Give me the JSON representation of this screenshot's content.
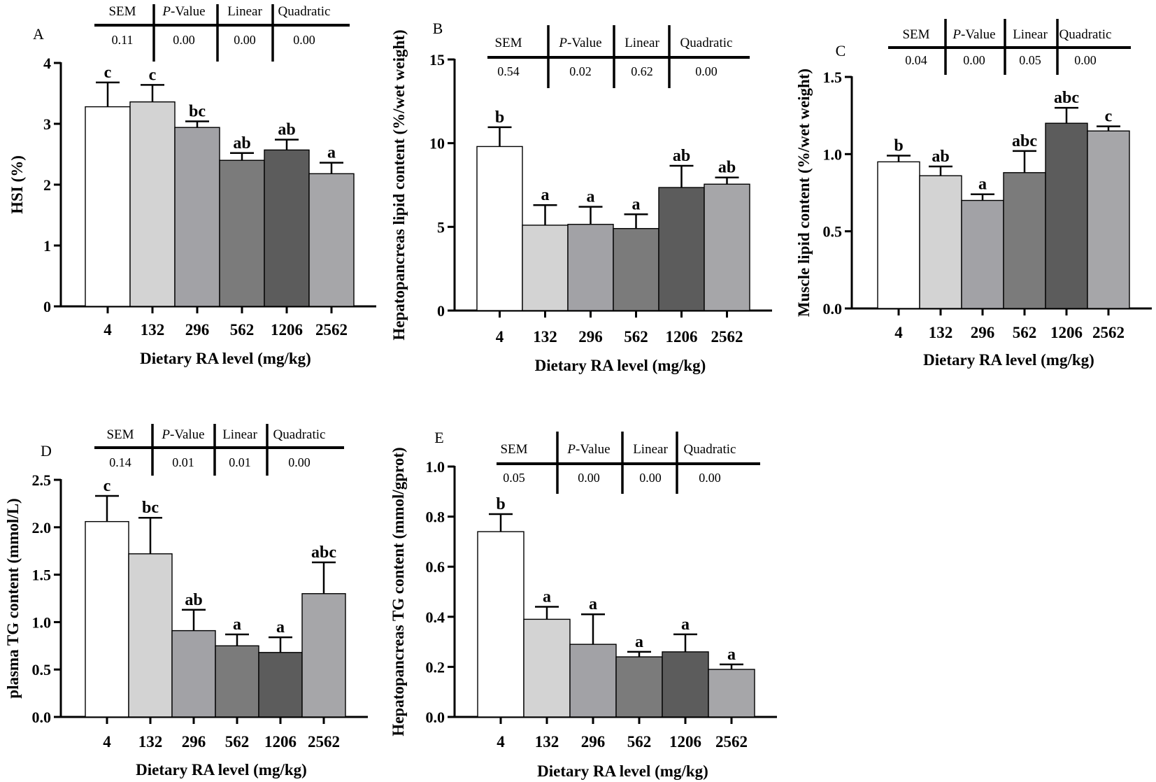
{
  "chart_data": [
    {
      "type": "bar",
      "panel": "A",
      "categories": [
        "4",
        "132",
        "296",
        "562",
        "1206",
        "2562"
      ],
      "values": [
        3.28,
        3.36,
        2.94,
        2.4,
        2.57,
        2.18
      ],
      "errors": [
        0.4,
        0.28,
        0.1,
        0.12,
        0.17,
        0.18
      ],
      "letters": [
        "c",
        "c",
        "bc",
        "ab",
        "ab",
        "a"
      ],
      "ticks": [
        "0",
        "1",
        "2",
        "3",
        "4"
      ],
      "ylim": [
        0,
        4
      ],
      "ylabel": "HSI (%)",
      "xlabel": "Dietary RA level (mg/kg)",
      "stats": {
        "headers": [
          "SEM",
          "-Value",
          "Linear",
          "Quadratic"
        ],
        "p_italic": "P",
        "values": [
          "0.11",
          "0.00",
          "0.00",
          "0.00"
        ]
      }
    },
    {
      "type": "bar",
      "panel": "B",
      "categories": [
        "4",
        "132",
        "296",
        "562",
        "1206",
        "2562"
      ],
      "values": [
        9.8,
        5.1,
        5.15,
        4.9,
        7.35,
        7.55
      ],
      "errors": [
        1.15,
        1.2,
        1.05,
        0.85,
        1.3,
        0.4
      ],
      "letters": [
        "b",
        "a",
        "a",
        "a",
        "ab",
        "ab"
      ],
      "ticks": [
        "0",
        "5",
        "10",
        "15"
      ],
      "ylim": [
        0,
        15
      ],
      "ylabel": "Hepatopancreas lipid content (%/wet weight)",
      "xlabel": "Dietary RA level (mg/kg)",
      "stats": {
        "headers": [
          "SEM",
          "-Value",
          "Linear",
          "Quadratic"
        ],
        "p_italic": "P",
        "values": [
          "0.54",
          "0.02",
          "0.62",
          "0.00"
        ]
      }
    },
    {
      "type": "bar",
      "panel": "C",
      "categories": [
        "4",
        "132",
        "296",
        "562",
        "1206",
        "2562"
      ],
      "values": [
        0.95,
        0.86,
        0.7,
        0.88,
        1.2,
        1.15
      ],
      "errors": [
        0.04,
        0.06,
        0.04,
        0.14,
        0.1,
        0.03
      ],
      "letters": [
        "b",
        "ab",
        "a",
        "abc",
        "abc",
        "c"
      ],
      "ticks": [
        "0.0",
        "0.5",
        "1.0",
        "1.5"
      ],
      "ylim": [
        0,
        1.5
      ],
      "ylabel": "Muscle lipid content (%/wet weight)",
      "xlabel": "Dietary RA level (mg/kg)",
      "stats": {
        "headers": [
          "SEM",
          "-Value",
          "Linear",
          "Quadratic"
        ],
        "p_italic": "P",
        "values": [
          "0.04",
          "0.00",
          "0.05",
          "0.00"
        ]
      }
    },
    {
      "type": "bar",
      "panel": "D",
      "categories": [
        "4",
        "132",
        "296",
        "562",
        "1206",
        "2562"
      ],
      "values": [
        2.06,
        1.72,
        0.91,
        0.75,
        0.68,
        1.3
      ],
      "errors": [
        0.27,
        0.38,
        0.22,
        0.12,
        0.16,
        0.33
      ],
      "letters": [
        "c",
        "bc",
        "ab",
        "a",
        "a",
        "abc"
      ],
      "ticks": [
        "0.0",
        "0.5",
        "1.0",
        "1.5",
        "2.0",
        "2.5"
      ],
      "ylim": [
        0,
        2.5
      ],
      "ylabel": "plasma TG content (mmol/L)",
      "xlabel": "Dietary RA level (mg/kg)",
      "stats": {
        "headers": [
          "SEM",
          "-Value",
          "Linear",
          "Quadratic"
        ],
        "p_italic": "P",
        "values": [
          "0.14",
          "0.01",
          "0.01",
          "0.00"
        ]
      }
    },
    {
      "type": "bar",
      "panel": "E",
      "categories": [
        "4",
        "132",
        "296",
        "562",
        "1206",
        "2562"
      ],
      "values": [
        0.74,
        0.39,
        0.29,
        0.24,
        0.26,
        0.19
      ],
      "errors": [
        0.07,
        0.05,
        0.12,
        0.02,
        0.07,
        0.02
      ],
      "letters": [
        "b",
        "a",
        "a",
        "a",
        "a",
        "a"
      ],
      "ticks": [
        "0.0",
        "0.2",
        "0.4",
        "0.6",
        "0.8",
        "1.0"
      ],
      "ylim": [
        0,
        1.0
      ],
      "ylabel": "Hepatopancreas TG content (mmol/gprot)",
      "xlabel": "Dietary RA level (mg/kg)",
      "stats": {
        "headers": [
          "SEM",
          "-Value",
          "Linear",
          "Quadratic"
        ],
        "p_italic": "P",
        "values": [
          "0.05",
          "0.00",
          "0.00",
          "0.00"
        ]
      }
    }
  ],
  "colors": {
    "bars": [
      "#ffffff",
      "#d3d3d3",
      "#a2a2a6",
      "#7b7b7b",
      "#5c5c5c",
      "#a6a6a9"
    ],
    "stroke": "#000000"
  }
}
